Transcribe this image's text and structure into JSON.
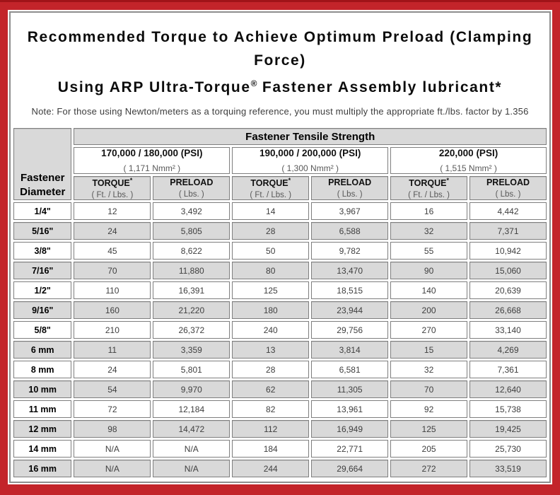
{
  "header": {
    "title_line1": "Recommended Torque to Achieve Optimum Preload (Clamping Force)",
    "title_line2_a": "Using ARP Ultra-Torque",
    "title_line2_mark": "®",
    "title_line2_b": " Fastener Assembly lubricant*",
    "note": "Note: For those using Newton/meters as a torquing reference, you must multiply the appropriate ft./lbs. factor by 1.356"
  },
  "table": {
    "main_header": "Fastener Tensile Strength",
    "corner_line1": "Fastener",
    "corner_line2": "Diameter",
    "groups": [
      {
        "psi": "170,000 / 180,000 (PSI)",
        "nmm": "( 1,171 Nmm² )"
      },
      {
        "psi": "190,000 / 200,000 (PSI)",
        "nmm": "( 1,300 Nmm² )"
      },
      {
        "psi": "220,000 (PSI)",
        "nmm": "( 1,515 Nmm² )"
      }
    ],
    "columns": {
      "torque_label": "TORQUE",
      "torque_mark": "*",
      "torque_unit": "( Ft. / Lbs. )",
      "preload_label": "PRELOAD",
      "preload_unit": "( Lbs. )"
    },
    "rows": [
      {
        "size": "1/4\"",
        "values": [
          "12",
          "3,492",
          "14",
          "3,967",
          "16",
          "4,442"
        ]
      },
      {
        "size": "5/16\"",
        "values": [
          "24",
          "5,805",
          "28",
          "6,588",
          "32",
          "7,371"
        ]
      },
      {
        "size": "3/8\"",
        "values": [
          "45",
          "8,622",
          "50",
          "9,782",
          "55",
          "10,942"
        ]
      },
      {
        "size": "7/16\"",
        "values": [
          "70",
          "11,880",
          "80",
          "13,470",
          "90",
          "15,060"
        ]
      },
      {
        "size": "1/2\"",
        "values": [
          "110",
          "16,391",
          "125",
          "18,515",
          "140",
          "20,639"
        ]
      },
      {
        "size": "9/16\"",
        "values": [
          "160",
          "21,220",
          "180",
          "23,944",
          "200",
          "26,668"
        ]
      },
      {
        "size": "5/8\"",
        "values": [
          "210",
          "26,372",
          "240",
          "29,756",
          "270",
          "33,140"
        ]
      },
      {
        "size": "6 mm",
        "values": [
          "11",
          "3,359",
          "13",
          "3,814",
          "15",
          "4,269"
        ]
      },
      {
        "size": "8 mm",
        "values": [
          "24",
          "5,801",
          "28",
          "6,581",
          "32",
          "7,361"
        ]
      },
      {
        "size": "10 mm",
        "values": [
          "54",
          "9,970",
          "62",
          "11,305",
          "70",
          "12,640"
        ]
      },
      {
        "size": "11 mm",
        "values": [
          "72",
          "12,184",
          "82",
          "13,961",
          "92",
          "15,738"
        ]
      },
      {
        "size": "12 mm",
        "values": [
          "98",
          "14,472",
          "112",
          "16,949",
          "125",
          "19,425"
        ]
      },
      {
        "size": "14 mm",
        "values": [
          "N/A",
          "N/A",
          "184",
          "22,771",
          "205",
          "25,730"
        ]
      },
      {
        "size": "16 mm",
        "values": [
          "N/A",
          "N/A",
          "244",
          "29,664",
          "272",
          "33,519"
        ]
      }
    ]
  },
  "colors": {
    "border_red": "#c3242a",
    "cell_gray": "#d9d9d9",
    "grid_gray": "#7e7e7e",
    "value_text": "#3f3f3f"
  }
}
